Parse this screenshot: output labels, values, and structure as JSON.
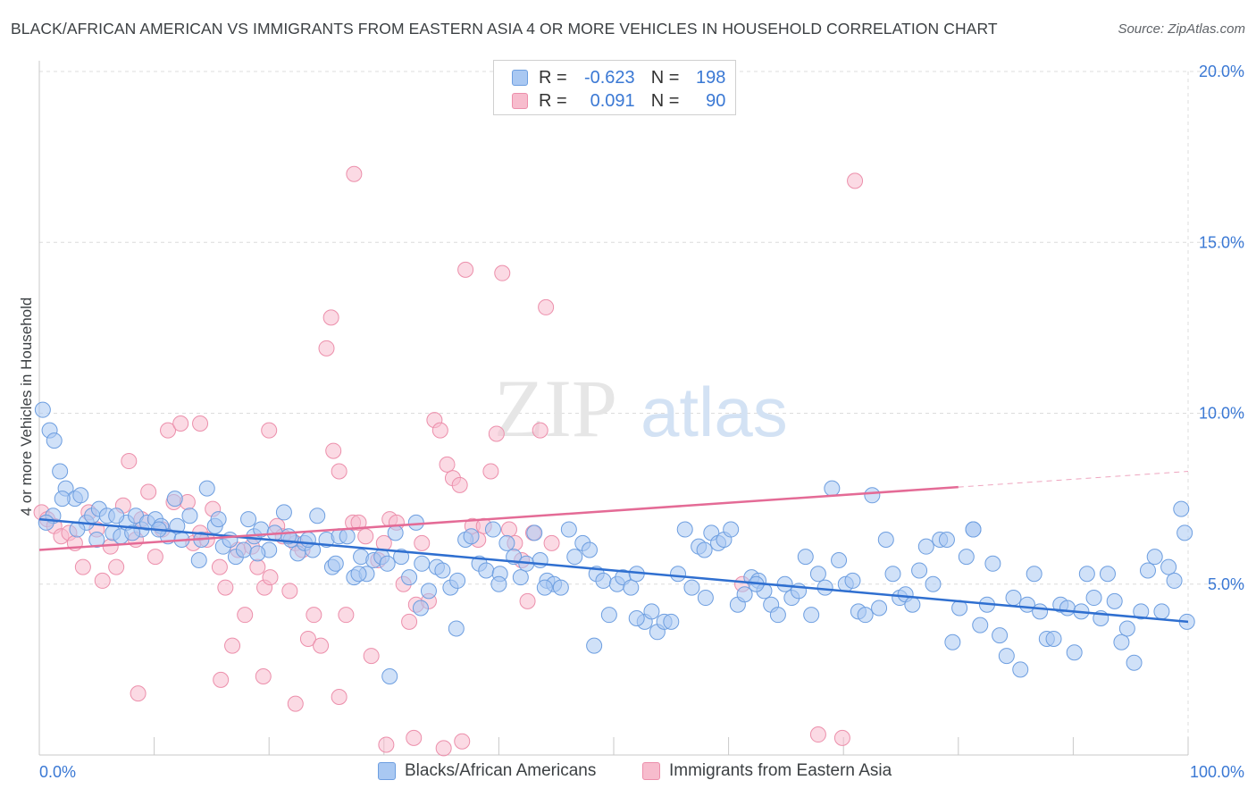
{
  "title": "BLACK/AFRICAN AMERICAN VS IMMIGRANTS FROM EASTERN ASIA 4 OR MORE VEHICLES IN HOUSEHOLD CORRELATION CHART",
  "source": "Source: ZipAtlas.com",
  "watermark": {
    "zip": "ZIP",
    "atlas": "atlas"
  },
  "colors": {
    "blue_fill": "#a9c8f2",
    "blue_stroke": "#6d9ee0",
    "blue_line": "#2f6fd0",
    "pink_fill": "#f7bccd",
    "pink_stroke": "#ec8fab",
    "pink_line": "#e46b96",
    "grid": "#dcdcdc",
    "tick_text": "#3a78d4"
  },
  "legend_top": [
    {
      "swatch": "blue",
      "r_label": "R =",
      "r_value": "-0.623",
      "n_label": "N =",
      "n_value": "198"
    },
    {
      "swatch": "pink",
      "r_label": "R =",
      "r_value": "0.091",
      "n_label": "N =",
      "n_value": "90"
    }
  ],
  "legend_bottom": [
    {
      "swatch": "blue",
      "label": "Blacks/African Americans"
    },
    {
      "swatch": "pink",
      "label": "Immigrants from Eastern Asia"
    }
  ],
  "chart_data": {
    "type": "scatter",
    "title": "BLACK/AFRICAN AMERICAN VS IMMIGRANTS FROM EASTERN ASIA 4 OR MORE VEHICLES IN HOUSEHOLD CORRELATION CHART",
    "xlabel": "",
    "ylabel": "4 or more Vehicles in Household",
    "xlim": [
      0,
      100
    ],
    "ylim": [
      0,
      20
    ],
    "x_tick_labels": [
      "0.0%",
      "100.0%"
    ],
    "y_ticks": [
      5,
      10,
      15,
      20
    ],
    "y_tick_labels": [
      "5.0%",
      "10.0%",
      "15.0%",
      "20.0%"
    ],
    "grid": true,
    "legend_position": "top-center",
    "series": [
      {
        "name": "Blacks/African Americans",
        "r": -0.623,
        "n": 198,
        "trend": {
          "x": [
            0,
            100
          ],
          "y": [
            6.9,
            3.9
          ]
        },
        "points": [
          [
            0.3,
            10.1
          ],
          [
            0.9,
            9.5
          ],
          [
            1.3,
            9.2
          ],
          [
            1.8,
            8.3
          ],
          [
            2.3,
            7.8
          ],
          [
            3.1,
            7.5
          ],
          [
            3.6,
            7.6
          ],
          [
            4.1,
            6.8
          ],
          [
            4.6,
            7.0
          ],
          [
            5.2,
            7.2
          ],
          [
            5.9,
            7.0
          ],
          [
            6.4,
            6.5
          ],
          [
            7.1,
            6.4
          ],
          [
            7.6,
            6.8
          ],
          [
            8.4,
            7.0
          ],
          [
            8.9,
            6.6
          ],
          [
            9.4,
            6.8
          ],
          [
            10.1,
            6.9
          ],
          [
            10.6,
            6.7
          ],
          [
            11.2,
            6.4
          ],
          [
            11.8,
            7.5
          ],
          [
            12.4,
            6.3
          ],
          [
            13.1,
            7.0
          ],
          [
            14.1,
            6.3
          ],
          [
            14.6,
            7.8
          ],
          [
            15.3,
            6.7
          ],
          [
            16.0,
            6.1
          ],
          [
            16.6,
            6.3
          ],
          [
            17.1,
            5.8
          ],
          [
            17.8,
            6.0
          ],
          [
            18.2,
            6.9
          ],
          [
            18.7,
            6.4
          ],
          [
            19.3,
            6.6
          ],
          [
            20.0,
            6.0
          ],
          [
            20.5,
            6.5
          ],
          [
            21.3,
            7.1
          ],
          [
            21.9,
            6.3
          ],
          [
            22.5,
            5.9
          ],
          [
            23.1,
            6.2
          ],
          [
            23.8,
            6.0
          ],
          [
            24.2,
            7.0
          ],
          [
            25.0,
            6.3
          ],
          [
            25.5,
            5.5
          ],
          [
            26.1,
            6.4
          ],
          [
            26.8,
            6.4
          ],
          [
            27.4,
            5.2
          ],
          [
            28.0,
            5.8
          ],
          [
            28.5,
            5.3
          ],
          [
            29.1,
            5.7
          ],
          [
            29.8,
            5.8
          ],
          [
            30.3,
            5.6
          ],
          [
            31.0,
            6.5
          ],
          [
            31.5,
            5.8
          ],
          [
            32.2,
            5.2
          ],
          [
            32.8,
            6.8
          ],
          [
            33.3,
            5.6
          ],
          [
            33.9,
            4.8
          ],
          [
            34.6,
            5.5
          ],
          [
            35.1,
            5.4
          ],
          [
            35.8,
            4.9
          ],
          [
            36.4,
            5.1
          ],
          [
            37.1,
            6.3
          ],
          [
            37.6,
            6.4
          ],
          [
            38.3,
            5.6
          ],
          [
            38.9,
            5.4
          ],
          [
            39.5,
            6.6
          ],
          [
            40.1,
            5.3
          ],
          [
            40.7,
            6.2
          ],
          [
            41.3,
            5.8
          ],
          [
            41.9,
            5.2
          ],
          [
            42.4,
            5.6
          ],
          [
            43.1,
            6.5
          ],
          [
            43.6,
            5.7
          ],
          [
            44.2,
            5.1
          ],
          [
            44.8,
            5.0
          ],
          [
            45.4,
            4.9
          ],
          [
            46.1,
            6.6
          ],
          [
            46.6,
            5.8
          ],
          [
            47.3,
            6.2
          ],
          [
            47.9,
            6.0
          ],
          [
            48.5,
            5.3
          ],
          [
            49.1,
            5.1
          ],
          [
            49.6,
            4.1
          ],
          [
            50.3,
            5.0
          ],
          [
            50.8,
            5.2
          ],
          [
            51.5,
            4.9
          ],
          [
            52.0,
            5.3
          ],
          [
            52.7,
            3.9
          ],
          [
            53.3,
            4.2
          ],
          [
            53.8,
            3.6
          ],
          [
            54.4,
            3.9
          ],
          [
            55.0,
            3.9
          ],
          [
            55.6,
            5.3
          ],
          [
            56.2,
            6.6
          ],
          [
            56.8,
            4.9
          ],
          [
            57.4,
            6.1
          ],
          [
            57.9,
            6.0
          ],
          [
            58.5,
            6.5
          ],
          [
            59.1,
            6.2
          ],
          [
            59.6,
            6.3
          ],
          [
            60.2,
            6.6
          ],
          [
            60.8,
            4.4
          ],
          [
            61.4,
            4.7
          ],
          [
            62.0,
            5.2
          ],
          [
            62.6,
            5.1
          ],
          [
            63.1,
            4.8
          ],
          [
            63.7,
            4.4
          ],
          [
            64.3,
            4.1
          ],
          [
            64.9,
            5.0
          ],
          [
            65.5,
            4.6
          ],
          [
            66.1,
            4.8
          ],
          [
            66.7,
            5.8
          ],
          [
            67.2,
            4.1
          ],
          [
            67.8,
            5.3
          ],
          [
            68.4,
            4.9
          ],
          [
            69.0,
            7.8
          ],
          [
            69.6,
            5.7
          ],
          [
            70.2,
            5.0
          ],
          [
            70.8,
            5.1
          ],
          [
            71.3,
            4.2
          ],
          [
            71.9,
            4.1
          ],
          [
            72.5,
            7.6
          ],
          [
            73.1,
            4.3
          ],
          [
            73.7,
            6.3
          ],
          [
            74.3,
            5.3
          ],
          [
            74.9,
            4.6
          ],
          [
            75.4,
            4.7
          ],
          [
            76.0,
            4.4
          ],
          [
            76.6,
            5.4
          ],
          [
            77.2,
            6.1
          ],
          [
            77.8,
            5.0
          ],
          [
            78.4,
            6.3
          ],
          [
            79.0,
            6.3
          ],
          [
            79.5,
            3.3
          ],
          [
            80.1,
            4.3
          ],
          [
            80.7,
            5.8
          ],
          [
            81.3,
            6.6
          ],
          [
            81.9,
            3.8
          ],
          [
            82.5,
            4.4
          ],
          [
            83.0,
            5.6
          ],
          [
            83.6,
            3.5
          ],
          [
            84.2,
            2.9
          ],
          [
            84.8,
            4.6
          ],
          [
            85.4,
            2.5
          ],
          [
            86.0,
            4.4
          ],
          [
            86.6,
            5.3
          ],
          [
            87.1,
            4.2
          ],
          [
            87.7,
            3.4
          ],
          [
            88.3,
            3.4
          ],
          [
            88.9,
            4.4
          ],
          [
            89.5,
            4.3
          ],
          [
            90.1,
            3.0
          ],
          [
            90.7,
            4.2
          ],
          [
            91.2,
            5.3
          ],
          [
            91.8,
            4.6
          ],
          [
            92.4,
            4.0
          ],
          [
            93.0,
            5.3
          ],
          [
            93.6,
            4.5
          ],
          [
            94.2,
            3.3
          ],
          [
            94.7,
            3.7
          ],
          [
            95.3,
            2.7
          ],
          [
            95.9,
            4.2
          ],
          [
            96.5,
            5.4
          ],
          [
            97.1,
            5.8
          ],
          [
            97.7,
            4.2
          ],
          [
            98.3,
            5.5
          ],
          [
            98.8,
            5.1
          ],
          [
            99.4,
            7.2
          ],
          [
            99.7,
            6.5
          ],
          [
            99.9,
            3.9
          ],
          [
            81.3,
            6.6
          ],
          [
            62.4,
            5.0
          ],
          [
            58.0,
            4.6
          ],
          [
            52.0,
            4.0
          ],
          [
            48.3,
            3.2
          ],
          [
            44.0,
            4.9
          ],
          [
            40.0,
            5.0
          ],
          [
            36.3,
            3.7
          ],
          [
            33.2,
            4.3
          ],
          [
            30.5,
            2.3
          ],
          [
            27.8,
            5.3
          ],
          [
            25.8,
            5.6
          ],
          [
            23.4,
            6.3
          ],
          [
            21.7,
            6.4
          ],
          [
            19.0,
            5.9
          ],
          [
            15.6,
            6.9
          ],
          [
            13.9,
            5.7
          ],
          [
            12.0,
            6.7
          ],
          [
            10.4,
            6.6
          ],
          [
            8.1,
            6.5
          ],
          [
            6.7,
            7.0
          ],
          [
            5.0,
            6.3
          ],
          [
            3.3,
            6.6
          ],
          [
            2.0,
            7.5
          ],
          [
            1.2,
            7.0
          ],
          [
            0.6,
            6.8
          ]
        ]
      },
      {
        "name": "Immigrants from Eastern Asia",
        "r": 0.091,
        "n": 90,
        "trend": {
          "x": [
            0,
            100
          ],
          "y": [
            6.0,
            8.3
          ]
        },
        "trend_solid_until_x": 80,
        "points": [
          [
            0.2,
            7.1
          ],
          [
            0.7,
            6.9
          ],
          [
            1.3,
            6.7
          ],
          [
            1.9,
            6.4
          ],
          [
            2.6,
            6.5
          ],
          [
            3.1,
            6.2
          ],
          [
            3.8,
            5.5
          ],
          [
            4.3,
            7.1
          ],
          [
            5.0,
            6.6
          ],
          [
            5.5,
            5.1
          ],
          [
            6.2,
            6.1
          ],
          [
            6.7,
            5.5
          ],
          [
            7.3,
            7.3
          ],
          [
            7.8,
            8.6
          ],
          [
            8.4,
            6.3
          ],
          [
            8.9,
            6.9
          ],
          [
            9.5,
            7.7
          ],
          [
            10.1,
            5.8
          ],
          [
            10.7,
            6.6
          ],
          [
            11.2,
            9.5
          ],
          [
            11.7,
            7.4
          ],
          [
            12.3,
            9.7
          ],
          [
            12.9,
            7.4
          ],
          [
            13.4,
            6.2
          ],
          [
            14.0,
            6.5
          ],
          [
            14.6,
            6.3
          ],
          [
            15.1,
            7.2
          ],
          [
            15.7,
            5.5
          ],
          [
            16.2,
            4.9
          ],
          [
            16.8,
            3.2
          ],
          [
            17.3,
            6.0
          ],
          [
            17.9,
            4.1
          ],
          [
            18.5,
            6.1
          ],
          [
            19.0,
            5.5
          ],
          [
            19.6,
            4.9
          ],
          [
            20.1,
            5.2
          ],
          [
            20.7,
            6.7
          ],
          [
            21.2,
            6.4
          ],
          [
            21.8,
            4.8
          ],
          [
            22.3,
            6.2
          ],
          [
            22.9,
            6.0
          ],
          [
            23.4,
            3.4
          ],
          [
            23.9,
            4.1
          ],
          [
            24.5,
            3.2
          ],
          [
            25.0,
            11.9
          ],
          [
            25.6,
            8.9
          ],
          [
            26.1,
            8.3
          ],
          [
            26.7,
            4.1
          ],
          [
            27.3,
            6.8
          ],
          [
            27.8,
            6.8
          ],
          [
            28.4,
            6.4
          ],
          [
            28.9,
            2.9
          ],
          [
            29.5,
            5.7
          ],
          [
            30.0,
            6.2
          ],
          [
            30.5,
            6.9
          ],
          [
            31.1,
            6.8
          ],
          [
            31.7,
            5.0
          ],
          [
            32.2,
            3.9
          ],
          [
            32.8,
            4.4
          ],
          [
            33.3,
            6.2
          ],
          [
            33.9,
            4.5
          ],
          [
            34.4,
            9.8
          ],
          [
            34.9,
            9.5
          ],
          [
            35.5,
            8.5
          ],
          [
            36.0,
            8.1
          ],
          [
            36.6,
            7.9
          ],
          [
            37.1,
            14.2
          ],
          [
            37.7,
            6.7
          ],
          [
            38.2,
            6.3
          ],
          [
            38.7,
            6.7
          ],
          [
            39.3,
            8.3
          ],
          [
            39.8,
            9.4
          ],
          [
            40.3,
            14.1
          ],
          [
            40.9,
            6.6
          ],
          [
            41.4,
            6.2
          ],
          [
            42.0,
            5.7
          ],
          [
            42.5,
            4.5
          ],
          [
            43.0,
            6.5
          ],
          [
            43.6,
            9.5
          ],
          [
            44.1,
            13.1
          ],
          [
            44.6,
            6.2
          ],
          [
            25.4,
            12.8
          ],
          [
            30.2,
            0.3
          ],
          [
            32.6,
            0.5
          ],
          [
            35.2,
            0.2
          ],
          [
            36.8,
            0.4
          ],
          [
            67.8,
            0.6
          ],
          [
            69.9,
            0.5
          ],
          [
            71.0,
            16.8
          ],
          [
            61.2,
            5.0
          ],
          [
            27.4,
            17.0
          ],
          [
            14.0,
            9.7
          ],
          [
            20.0,
            9.5
          ],
          [
            8.6,
            1.8
          ],
          [
            15.8,
            2.2
          ],
          [
            19.5,
            2.3
          ],
          [
            22.3,
            1.5
          ],
          [
            26.1,
            1.7
          ]
        ]
      }
    ]
  }
}
